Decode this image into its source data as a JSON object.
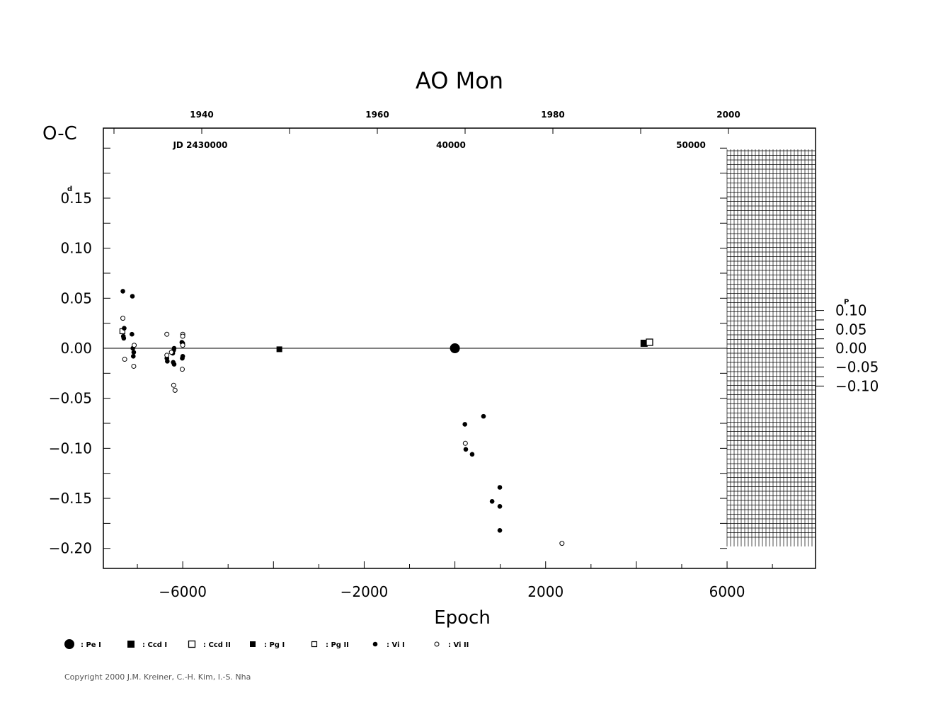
{
  "chart_data": {
    "type": "scatter",
    "title": "AO  Mon",
    "xlabel": "Epoch",
    "ylabel": "O-C",
    "ylabel_unit": "d",
    "right_axis_unit": "P",
    "xlim": [
      -7750,
      7950
    ],
    "ylim": [
      -0.22,
      0.22
    ],
    "x_ticks": [
      -6000,
      -2000,
      2000,
      6000
    ],
    "y_ticks": [
      0.15,
      0.1,
      0.05,
      0.0,
      -0.05,
      -0.1,
      -0.15,
      -0.2
    ],
    "y_tick_labels": [
      "0.15",
      "0.10",
      "0.05",
      "0.00",
      "−0.05",
      "−0.10",
      "−0.15",
      "−0.20"
    ],
    "x_tick_labels": [
      "−6000",
      "−2000",
      "2000",
      "6000"
    ],
    "right_ticks": [
      0.1,
      0.05,
      0.0,
      -0.05,
      -0.1
    ],
    "right_tick_labels": [
      "0.10",
      "0.05",
      "0.00",
      "−0.05",
      "−0.10"
    ],
    "top_year_labels": [
      {
        "year": 1940,
        "label": "1940"
      },
      {
        "year": 1960,
        "label": "1960"
      },
      {
        "year": 1980,
        "label": "1980"
      },
      {
        "year": 2000,
        "label": "2000"
      }
    ],
    "jd_labels": [
      {
        "label": "JD  2430000"
      },
      {
        "label": "40000"
      },
      {
        "label": "50000"
      }
    ],
    "series": [
      {
        "name": ": Pe  I",
        "marker": "filled-circle-large",
        "points": [
          [
            0,
            0.0
          ]
        ]
      },
      {
        "name": ": Ccd  I",
        "marker": "filled-square",
        "points": [
          [
            4170,
            0.005
          ]
        ]
      },
      {
        "name": ": Ccd  II",
        "marker": "open-square",
        "points": [
          [
            4290,
            0.006
          ]
        ]
      },
      {
        "name": ": Pg  I",
        "marker": "filled-square-small",
        "points": [
          [
            -3870,
            -0.001
          ]
        ]
      },
      {
        "name": ": Pg  II",
        "marker": "open-square-small",
        "points": [
          [
            -7330,
            0.017
          ]
        ]
      },
      {
        "name": ": Vi  I",
        "marker": "filled-circle-small",
        "points": [
          [
            -7320,
            0.057
          ],
          [
            -7110,
            0.052
          ],
          [
            -7290,
            0.02
          ],
          [
            -7310,
            0.012
          ],
          [
            -7300,
            0.01
          ],
          [
            -7120,
            0.014
          ],
          [
            -7100,
            0.0
          ],
          [
            -7080,
            -0.004
          ],
          [
            -7090,
            -0.008
          ],
          [
            -6350,
            -0.01
          ],
          [
            -6340,
            -0.013
          ],
          [
            -6220,
            -0.005
          ],
          [
            -6200,
            -0.002
          ],
          [
            -6190,
            0.0
          ],
          [
            -6210,
            -0.014
          ],
          [
            -6190,
            -0.016
          ],
          [
            -6020,
            0.006
          ],
          [
            -6000,
            0.005
          ],
          [
            -6010,
            -0.01
          ],
          [
            -6000,
            -0.008
          ],
          [
            220,
            -0.076
          ],
          [
            240,
            -0.101
          ],
          [
            380,
            -0.106
          ],
          [
            630,
            -0.068
          ],
          [
            820,
            -0.153
          ],
          [
            990,
            -0.139
          ],
          [
            990,
            -0.158
          ],
          [
            990,
            -0.182
          ]
        ]
      },
      {
        "name": ": Vi  II",
        "marker": "open-circle-small",
        "points": [
          [
            -7320,
            0.03
          ],
          [
            -7280,
            -0.011
          ],
          [
            -7070,
            0.003
          ],
          [
            -7080,
            -0.018
          ],
          [
            -6350,
            0.014
          ],
          [
            -6350,
            -0.007
          ],
          [
            -6250,
            -0.004
          ],
          [
            -6200,
            -0.037
          ],
          [
            -6170,
            -0.042
          ],
          [
            -6000,
            0.014
          ],
          [
            -6000,
            0.012
          ],
          [
            -6000,
            0.003
          ],
          [
            -6010,
            -0.021
          ],
          [
            230,
            -0.095
          ],
          [
            2360,
            -0.195
          ]
        ]
      }
    ]
  },
  "copyright": "Copyright 2000 J.M. Kreiner, C.-H. Kim, I.-S. Nha"
}
